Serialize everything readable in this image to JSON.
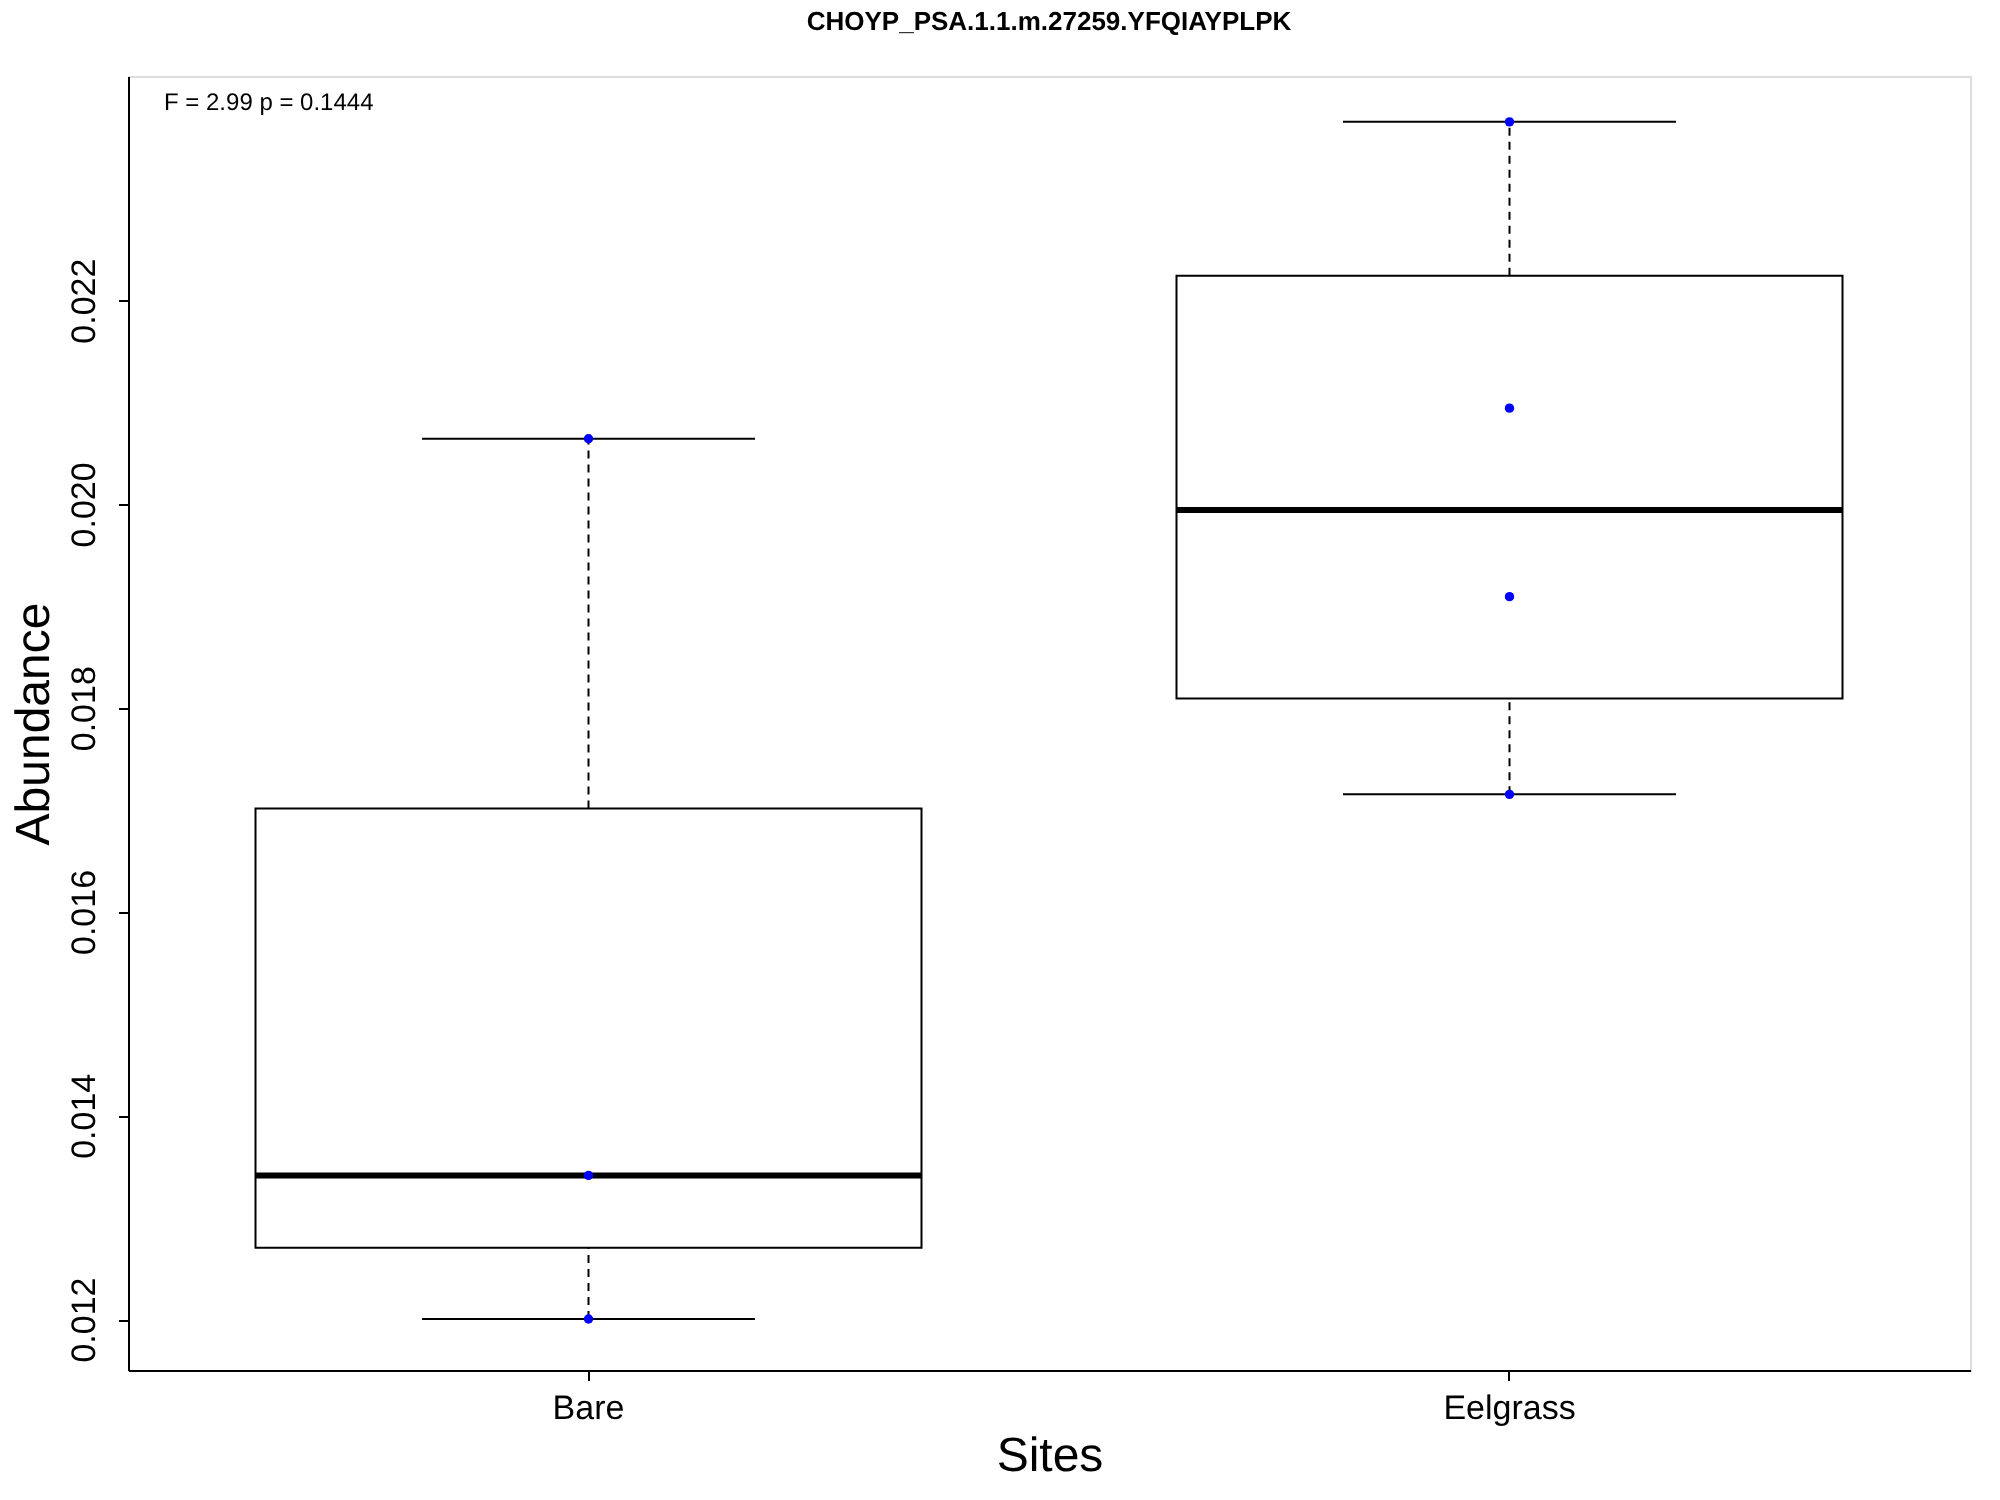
{
  "chart_data": {
    "type": "box",
    "title": "CHOYP_PSA.1.1.m.27259.YFQIAYPLPK",
    "xlabel": "Sites",
    "ylabel": "Abundance",
    "categories": [
      "Bare",
      "Eelgrass"
    ],
    "boxes": [
      {
        "low": 0.012,
        "q1": 0.0127,
        "median": 0.01341,
        "q3": 0.01701,
        "high": 0.02064
      },
      {
        "low": 0.01715,
        "q1": 0.01809,
        "median": 0.01994,
        "q3": 0.02224,
        "high": 0.02375
      }
    ],
    "series": [
      {
        "type": "scatter",
        "color": "#0000ff",
        "x": [
          "Bare",
          "Bare",
          "Bare",
          "Eelgrass",
          "Eelgrass",
          "Eelgrass",
          "Eelgrass"
        ],
        "values": [
          0.02064,
          0.01341,
          0.012,
          0.02375,
          0.02094,
          0.01909,
          0.01715
        ]
      }
    ],
    "ylim": [
      0.0115,
      0.0242
    ],
    "yticks": [
      {
        "value": 0.012,
        "label": "0.012"
      },
      {
        "value": 0.014,
        "label": "0.014"
      },
      {
        "value": 0.016,
        "label": "0.016"
      },
      {
        "value": 0.018,
        "label": "0.018"
      },
      {
        "value": 0.02,
        "label": "0.020"
      },
      {
        "value": 0.022,
        "label": "0.022"
      }
    ],
    "annotations": [
      "F = 2.99 p = 0.1444"
    ],
    "grid": false,
    "marker": "circle"
  }
}
